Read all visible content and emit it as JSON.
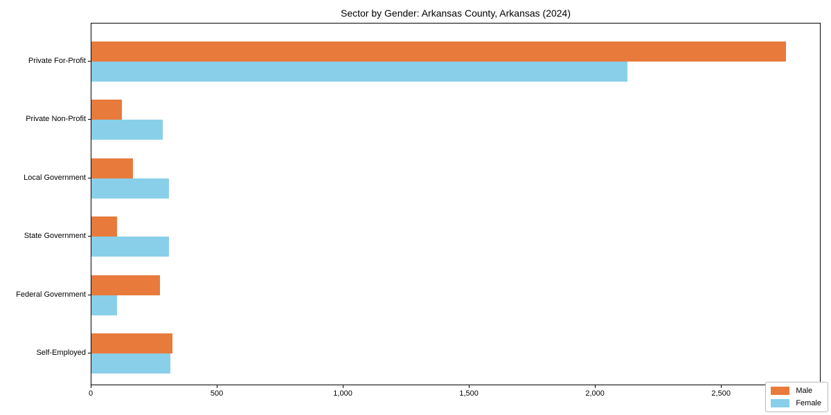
{
  "chart_data": {
    "type": "bar",
    "orientation": "horizontal",
    "title": "Sector by Gender: Arkansas County, Arkansas (2024)",
    "categories": [
      "Private For-Profit",
      "Private Non-Profit",
      "Local Government",
      "State Government",
      "Federal Government",
      "Self-Employed"
    ],
    "series": [
      {
        "name": "Male",
        "color": "#e87a3c",
        "values": [
          2760,
          122,
          166,
          103,
          272,
          321
        ]
      },
      {
        "name": "Female",
        "color": "#89cfe9",
        "values": [
          2130,
          284,
          307,
          307,
          103,
          313
        ]
      }
    ],
    "xlabel": "",
    "ylabel": "",
    "xlim": [
      0,
      2895
    ],
    "x_ticks": [
      0,
      500,
      1000,
      1500,
      2000,
      2500
    ],
    "x_tick_labels": [
      "0",
      "500",
      "1,000",
      "1,500",
      "2,000",
      "2,500"
    ],
    "grid": false,
    "legend": {
      "position": "lower right",
      "entries": [
        "Male",
        "Female"
      ]
    },
    "colors": {
      "male_bar": "#e87a3c",
      "female_bar": "#89cfe9",
      "spine": "#000000",
      "background": "#ffffff"
    }
  }
}
